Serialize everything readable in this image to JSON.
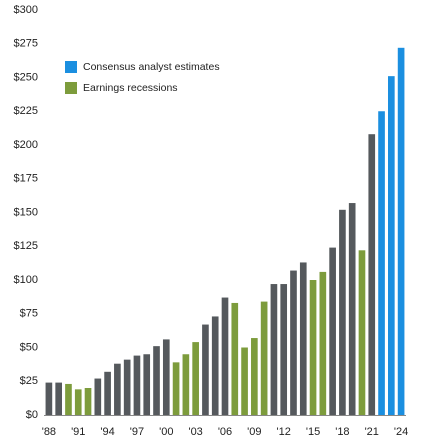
{
  "chart_data": {
    "type": "bar",
    "categories": [
      "'88",
      null,
      null,
      "'91",
      null,
      null,
      "'94",
      null,
      null,
      "'97",
      null,
      null,
      "'00",
      null,
      null,
      "'03",
      null,
      null,
      "'06",
      null,
      null,
      "'09",
      null,
      null,
      "'12",
      null,
      null,
      "'15",
      null,
      null,
      "'18",
      null,
      null,
      "'21",
      null,
      null,
      "'24"
    ],
    "values": [
      24,
      24,
      23,
      19,
      20,
      27,
      32,
      38,
      41,
      44,
      45,
      51,
      56,
      39,
      45,
      54,
      67,
      73,
      87,
      83,
      50,
      57,
      84,
      97,
      97,
      107,
      113,
      100,
      106,
      124,
      152,
      157,
      122,
      208,
      225,
      251,
      272
    ],
    "colors": [
      "#55595d",
      "#55595d",
      "#7d9c3c",
      "#7d9c3c",
      "#7d9c3c",
      "#55595d",
      "#55595d",
      "#55595d",
      "#55595d",
      "#55595d",
      "#55595d",
      "#55595d",
      "#55595d",
      "#7d9c3c",
      "#7d9c3c",
      "#7d9c3c",
      "#55595d",
      "#55595d",
      "#55595d",
      "#7d9c3c",
      "#7d9c3c",
      "#7d9c3c",
      "#7d9c3c",
      "#55595d",
      "#55595d",
      "#55595d",
      "#55595d",
      "#7d9c3c",
      "#7d9c3c",
      "#55595d",
      "#55595d",
      "#55595d",
      "#7d9c3c",
      "#55595d",
      "#1b8fe0",
      "#1b8fe0",
      "#1b8fe0"
    ],
    "legend": [
      {
        "name": "Consensus analyst estimates",
        "color": "#1b8fe0"
      },
      {
        "name": "Earnings recessions",
        "color": "#7d9c3c"
      }
    ],
    "ylim": [
      0,
      300
    ],
    "yticks": [
      {
        "value": 0,
        "label": "$0"
      },
      {
        "value": 25,
        "label": "$25"
      },
      {
        "value": 50,
        "label": "$50"
      },
      {
        "value": 75,
        "label": "$75"
      },
      {
        "value": 100,
        "label": "$100"
      },
      {
        "value": 125,
        "label": "$125"
      },
      {
        "value": 150,
        "label": "$150"
      },
      {
        "value": 175,
        "label": "$175"
      },
      {
        "value": 200,
        "label": "$200"
      },
      {
        "value": 225,
        "label": "$225"
      },
      {
        "value": 250,
        "label": "$250"
      },
      {
        "value": 275,
        "label": "$275"
      },
      {
        "value": 300,
        "label": "$300"
      }
    ],
    "grid": false
  }
}
